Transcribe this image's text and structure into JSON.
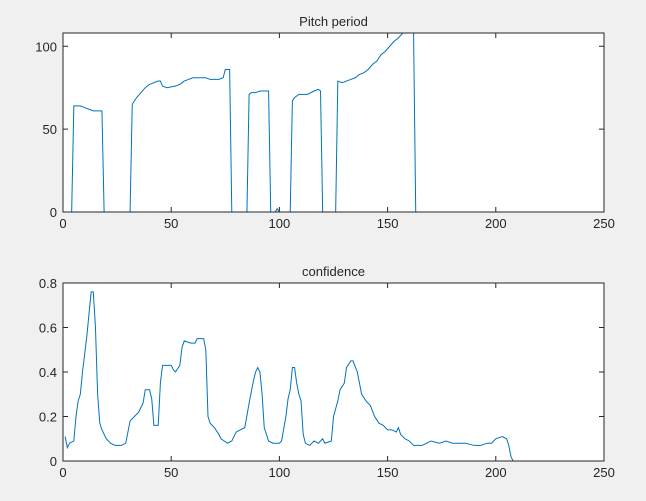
{
  "chart_data": [
    {
      "type": "line",
      "title": "Pitch period",
      "color": "#0072bd",
      "xlim": [
        0,
        250
      ],
      "xticks": [
        0,
        50,
        100,
        150,
        200,
        250
      ],
      "ylim": [
        0,
        108
      ],
      "yticks": [
        0,
        50,
        100
      ],
      "x": [
        1,
        4,
        5,
        8,
        10,
        12,
        14,
        17,
        18,
        19,
        30,
        31,
        32,
        34,
        36,
        38,
        40,
        42,
        44,
        45,
        46,
        48,
        52,
        54,
        56,
        58,
        60,
        66,
        68,
        72,
        74,
        75,
        77,
        78,
        85,
        86,
        87,
        89,
        91,
        95,
        96,
        98,
        99,
        100,
        105,
        106,
        107,
        109,
        113,
        116,
        118,
        119,
        120,
        126,
        127,
        129,
        131,
        133,
        135,
        137,
        139,
        141,
        143,
        145,
        147,
        149,
        151,
        153,
        155,
        157,
        161,
        162,
        163,
        236
      ],
      "values": [
        0,
        0,
        64,
        64,
        63,
        62,
        61,
        61,
        61,
        0,
        0,
        0,
        65,
        69,
        72,
        75,
        77,
        78,
        79,
        79,
        76,
        75,
        76,
        77,
        79,
        80,
        81,
        81,
        80,
        80,
        81,
        86,
        86,
        0,
        0,
        71,
        72,
        72,
        73,
        73,
        0,
        0,
        2,
        0,
        0,
        67,
        69,
        71,
        71,
        73,
        74,
        73,
        0,
        0,
        79,
        78,
        79,
        80,
        81,
        83,
        84,
        86,
        89,
        91,
        95,
        97,
        100,
        103,
        105,
        108,
        108,
        108,
        0,
        0
      ]
    },
    {
      "type": "line",
      "title": "confidence",
      "color": "#0072bd",
      "xlim": [
        0,
        250
      ],
      "xticks": [
        0,
        50,
        100,
        150,
        200,
        250
      ],
      "ylim": [
        0,
        0.8
      ],
      "yticks": [
        0,
        0.2,
        0.4,
        0.6,
        0.8
      ],
      "x": [
        1,
        2,
        3,
        5,
        6,
        7,
        8,
        9,
        10,
        11,
        12,
        13,
        14,
        15,
        16,
        17,
        18,
        20,
        22,
        24,
        27,
        29,
        30,
        31,
        33,
        35,
        37,
        38,
        40,
        41,
        42,
        44,
        45,
        46,
        50,
        51,
        52,
        54,
        55,
        56,
        59,
        61,
        62,
        65,
        66,
        67,
        68,
        70,
        72,
        73,
        76,
        78,
        80,
        82,
        84,
        86,
        88,
        89,
        90,
        91,
        92,
        93,
        95,
        97,
        100,
        101,
        103,
        104,
        105,
        106,
        107,
        108,
        109,
        110,
        111,
        112,
        114,
        116,
        118,
        120,
        121,
        124,
        125,
        127,
        128,
        130,
        131,
        133,
        134,
        136,
        138,
        140,
        142,
        144,
        146,
        148,
        150,
        152,
        154,
        155,
        156,
        158,
        160,
        162,
        164,
        166,
        168,
        170,
        174,
        177,
        180,
        184,
        186,
        190,
        193,
        196,
        198,
        200,
        203,
        205,
        206,
        207,
        208,
        236
      ],
      "values": [
        0.11,
        0.06,
        0.08,
        0.09,
        0.2,
        0.27,
        0.3,
        0.4,
        0.48,
        0.56,
        0.66,
        0.76,
        0.76,
        0.6,
        0.3,
        0.17,
        0.14,
        0.1,
        0.08,
        0.07,
        0.07,
        0.08,
        0.13,
        0.18,
        0.2,
        0.22,
        0.26,
        0.32,
        0.32,
        0.28,
        0.16,
        0.16,
        0.35,
        0.43,
        0.43,
        0.41,
        0.4,
        0.43,
        0.51,
        0.54,
        0.53,
        0.53,
        0.55,
        0.55,
        0.5,
        0.2,
        0.17,
        0.15,
        0.12,
        0.1,
        0.08,
        0.09,
        0.13,
        0.14,
        0.15,
        0.26,
        0.36,
        0.4,
        0.42,
        0.4,
        0.3,
        0.15,
        0.09,
        0.08,
        0.08,
        0.09,
        0.2,
        0.28,
        0.32,
        0.42,
        0.42,
        0.35,
        0.3,
        0.27,
        0.12,
        0.08,
        0.07,
        0.09,
        0.08,
        0.1,
        0.08,
        0.09,
        0.2,
        0.27,
        0.32,
        0.35,
        0.42,
        0.45,
        0.45,
        0.4,
        0.3,
        0.27,
        0.25,
        0.2,
        0.17,
        0.16,
        0.14,
        0.14,
        0.13,
        0.15,
        0.12,
        0.1,
        0.09,
        0.07,
        0.07,
        0.07,
        0.08,
        0.09,
        0.08,
        0.09,
        0.08,
        0.08,
        0.08,
        0.07,
        0.07,
        0.08,
        0.08,
        0.1,
        0.11,
        0.1,
        0.07,
        0.02,
        0,
        0
      ]
    }
  ]
}
